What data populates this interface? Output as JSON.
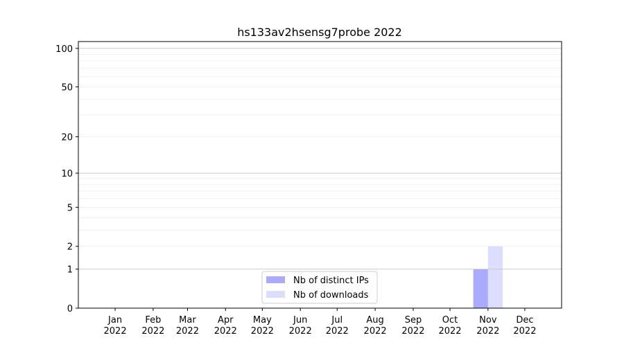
{
  "chart_data": {
    "type": "bar",
    "title": "hs133av2hsensg7probe 2022",
    "xlabel": "",
    "ylabel": "",
    "yscale": "symlog (log of 1+y)",
    "ylim": [
      0,
      113
    ],
    "xlim": [
      "2021-12-02",
      "2022-12-31"
    ],
    "grid": true,
    "legend_position": "bottom-center",
    "categories": [
      "Jan\n2022",
      "Feb\n2022",
      "Mar\n2022",
      "Apr\n2022",
      "May\n2022",
      "Jun\n2022",
      "Jul\n2022",
      "Aug\n2022",
      "Sep\n2022",
      "Oct\n2022",
      "Nov\n2022",
      "Dec\n2022"
    ],
    "month_dates": [
      "2022-01-01",
      "2022-02-01",
      "2022-03-01",
      "2022-04-01",
      "2022-05-01",
      "2022-06-01",
      "2022-07-01",
      "2022-08-01",
      "2022-09-01",
      "2022-10-01",
      "2022-11-01",
      "2022-12-01"
    ],
    "y_ticks": [
      0,
      1,
      2,
      5,
      10,
      20,
      50,
      100
    ],
    "y_tick_labels": [
      "0",
      "1",
      "2",
      "5",
      "10",
      "20",
      "50",
      "100"
    ],
    "series": [
      {
        "name": "Nb of distinct IPs",
        "color": "#aaaaff",
        "values": [
          0,
          0,
          0,
          0,
          0,
          0,
          0,
          0,
          0,
          0,
          1,
          0
        ]
      },
      {
        "name": "Nb of downloads",
        "color": "#ddddff",
        "values": [
          0,
          0,
          0,
          0,
          0,
          0,
          0,
          0,
          0,
          0,
          2,
          0
        ]
      }
    ]
  }
}
